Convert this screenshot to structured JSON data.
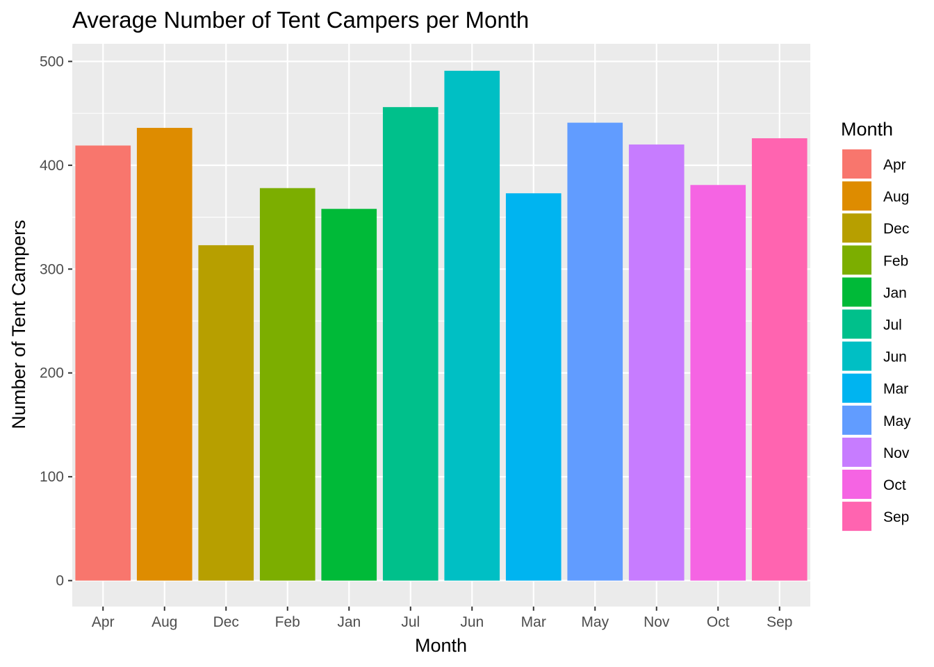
{
  "chart_data": {
    "type": "bar",
    "title": "Average Number of Tent Campers per Month",
    "xlabel": "Month",
    "ylabel": "Number of Tent Campers",
    "categories": [
      "Apr",
      "Aug",
      "Dec",
      "Feb",
      "Jan",
      "Jul",
      "Jun",
      "Mar",
      "May",
      "Nov",
      "Oct",
      "Sep"
    ],
    "values": [
      419,
      436,
      323,
      378,
      358,
      456,
      491,
      373,
      441,
      420,
      381,
      426
    ],
    "colors": [
      "#F8766D",
      "#DE8C00",
      "#B79F00",
      "#7CAE00",
      "#00BA38",
      "#00C08B",
      "#00BFC4",
      "#00B4F0",
      "#619CFF",
      "#C77CFF",
      "#F564E3",
      "#FF64B0"
    ],
    "ylim": [
      -25,
      517
    ],
    "yticks": [
      0,
      100,
      200,
      300,
      400,
      500
    ],
    "ytick_labels": [
      "0",
      "100",
      "200",
      "300",
      "400",
      "500"
    ],
    "grid": true,
    "panel_background": "#EBEBEB",
    "gridline_color": "#FFFFFF",
    "legend": {
      "title": "Month",
      "position": "right",
      "entries": [
        "Apr",
        "Aug",
        "Dec",
        "Feb",
        "Jan",
        "Jul",
        "Jun",
        "Mar",
        "May",
        "Nov",
        "Oct",
        "Sep"
      ]
    }
  }
}
